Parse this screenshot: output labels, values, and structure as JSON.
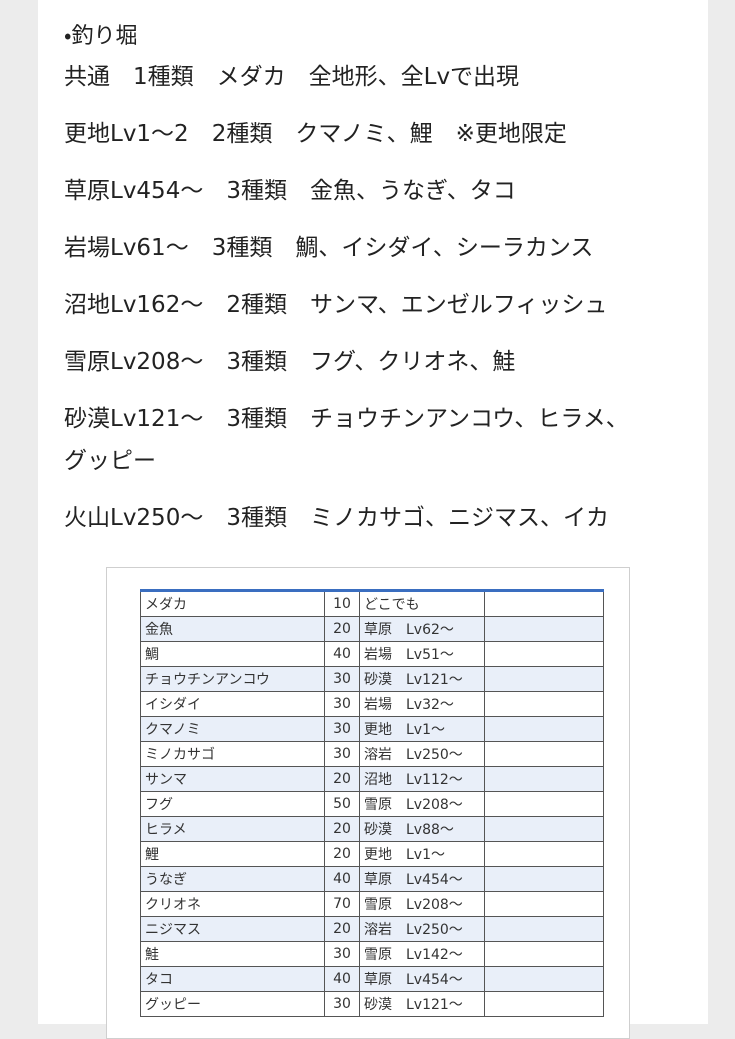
{
  "heading": "・釣り堀",
  "lines": [
    "共通　1種類　メダカ　全地形、全Lvで出現",
    "更地Lv1〜2　2種類　クマノミ、鯉　※更地限定",
    "草原Lv454〜　3種類　金魚、うなぎ、タコ",
    "岩場Lv61〜　3種類　鯛、イシダイ、シーラカンス",
    "沼地Lv162〜　2種類　サンマ、エンゼルフィッシュ",
    "雪原Lv208〜　3種類　フグ、クリオネ、鮭",
    "砂漠Lv121〜　3種類　チョウチンアンコウ、ヒラメ、グッピー",
    "火山Lv250〜　3種類　ミノカサゴ、ニジマス、イカ"
  ],
  "table": {
    "rows": [
      [
        "メダカ",
        10,
        "どこでも"
      ],
      [
        "金魚",
        20,
        "草原　Lv62〜"
      ],
      [
        "鯛",
        40,
        "岩場　Lv51〜"
      ],
      [
        "チョウチンアンコウ",
        30,
        "砂漠　Lv121〜"
      ],
      [
        "イシダイ",
        30,
        "岩場　Lv32〜"
      ],
      [
        "クマノミ",
        30,
        "更地　Lv1〜"
      ],
      [
        "ミノカサゴ",
        30,
        "溶岩　Lv250〜"
      ],
      [
        "サンマ",
        20,
        "沼地　Lv112〜"
      ],
      [
        "フグ",
        50,
        "雪原　Lv208〜"
      ],
      [
        "ヒラメ",
        20,
        "砂漠　Lv88〜"
      ],
      [
        "鯉",
        20,
        "更地　Lv1〜"
      ],
      [
        "うなぎ",
        40,
        "草原　Lv454〜"
      ],
      [
        "クリオネ",
        70,
        "雪原　Lv208〜"
      ],
      [
        "ニジマス",
        20,
        "溶岩　Lv250〜"
      ],
      [
        "鮭",
        30,
        "雪原　Lv142〜"
      ],
      [
        "タコ",
        40,
        "草原　Lv454〜"
      ],
      [
        "グッピー",
        30,
        "砂漠　Lv121〜"
      ]
    ]
  }
}
